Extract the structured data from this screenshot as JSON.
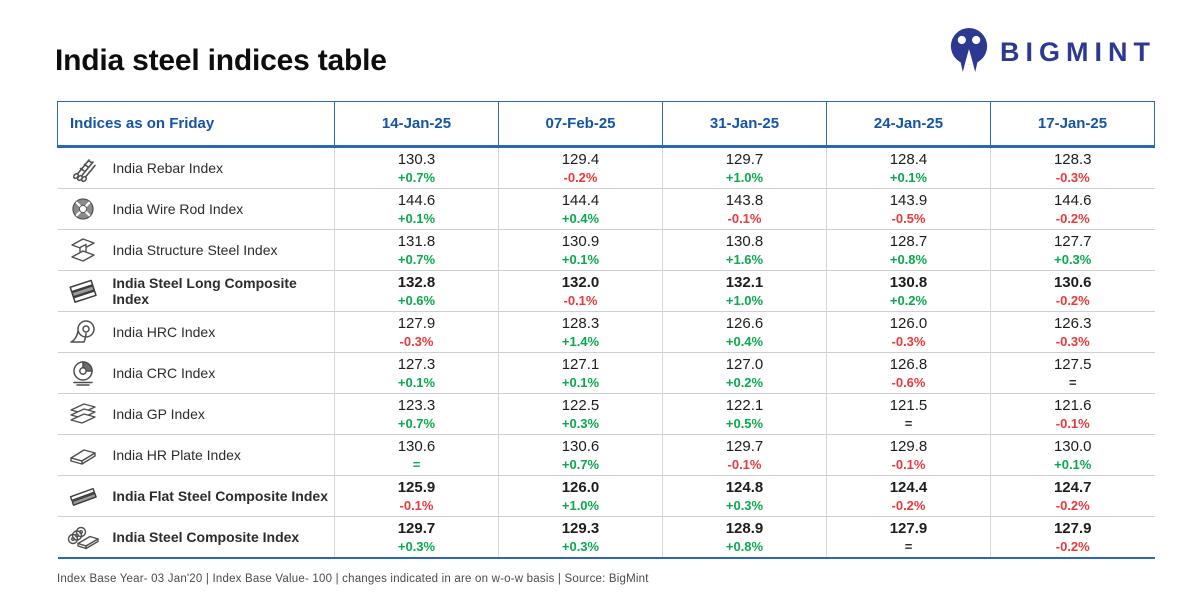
{
  "page": {
    "title": "India steel indices table"
  },
  "logo": {
    "text": "BIGMINT",
    "icon": "bigmint-logo-icon",
    "color": "#2b3990"
  },
  "colors": {
    "header_blue": "#1553a6",
    "border_blue": "#2a68b4",
    "up_green": "#0ba94e",
    "down_red": "#e8393b"
  },
  "table": {
    "header_label": "Indices as on Friday",
    "columns": [
      "14-Jan-25",
      "07-Feb-25",
      "31-Jan-25",
      "24-Jan-25",
      "17-Jan-25"
    ],
    "rows": [
      {
        "label": "India Rebar Index",
        "icon": "rebar-icon",
        "bold": false,
        "cells": [
          {
            "value": "130.3",
            "change": "+0.7%",
            "color": "green"
          },
          {
            "value": "129.4",
            "change": "-0.2%",
            "color": "red"
          },
          {
            "value": "129.7",
            "change": "+1.0%",
            "color": "green"
          },
          {
            "value": "128.4",
            "change": "+0.1%",
            "color": "green"
          },
          {
            "value": "128.3",
            "change": "-0.3%",
            "color": "red"
          }
        ]
      },
      {
        "label": "India Wire Rod Index",
        "icon": "wire-rod-icon",
        "bold": false,
        "cells": [
          {
            "value": "144.6",
            "change": "+0.1%",
            "color": "green"
          },
          {
            "value": "144.4",
            "change": "+0.4%",
            "color": "green"
          },
          {
            "value": "143.8",
            "change": "-0.1%",
            "color": "red"
          },
          {
            "value": "143.9",
            "change": "-0.5%",
            "color": "red"
          },
          {
            "value": "144.6",
            "change": "-0.2%",
            "color": "red"
          }
        ]
      },
      {
        "label": "India Structure Steel Index",
        "icon": "structure-steel-icon",
        "bold": false,
        "cells": [
          {
            "value": "131.8",
            "change": "+0.7%",
            "color": "green"
          },
          {
            "value": "130.9",
            "change": "+0.1%",
            "color": "green"
          },
          {
            "value": "130.8",
            "change": "+1.6%",
            "color": "green"
          },
          {
            "value": "128.7",
            "change": "+0.8%",
            "color": "green"
          },
          {
            "value": "127.7",
            "change": "+0.3%",
            "color": "green"
          }
        ]
      },
      {
        "label": "India Steel Long Composite Index",
        "icon": "long-composite-icon",
        "bold": true,
        "cells": [
          {
            "value": "132.8",
            "change": "+0.6%",
            "color": "green"
          },
          {
            "value": "132.0",
            "change": "-0.1%",
            "color": "red"
          },
          {
            "value": "132.1",
            "change": "+1.0%",
            "color": "green"
          },
          {
            "value": "130.8",
            "change": "+0.2%",
            "color": "green"
          },
          {
            "value": "130.6",
            "change": "-0.2%",
            "color": "red"
          }
        ]
      },
      {
        "label": "India HRC Index",
        "icon": "hrc-coil-icon",
        "bold": false,
        "cells": [
          {
            "value": "127.9",
            "change": "-0.3%",
            "color": "red"
          },
          {
            "value": "128.3",
            "change": "+1.4%",
            "color": "green"
          },
          {
            "value": "126.6",
            "change": "+0.4%",
            "color": "green"
          },
          {
            "value": "126.0",
            "change": "-0.3%",
            "color": "red"
          },
          {
            "value": "126.3",
            "change": "-0.3%",
            "color": "red"
          }
        ]
      },
      {
        "label": "India CRC Index",
        "icon": "crc-coil-icon",
        "bold": false,
        "cells": [
          {
            "value": "127.3",
            "change": "+0.1%",
            "color": "green"
          },
          {
            "value": "127.1",
            "change": "+0.1%",
            "color": "green"
          },
          {
            "value": "127.0",
            "change": "+0.2%",
            "color": "green"
          },
          {
            "value": "126.8",
            "change": "-0.6%",
            "color": "red"
          },
          {
            "value": "127.5",
            "change": "=",
            "color": "dark"
          }
        ]
      },
      {
        "label": "India GP Index",
        "icon": "gp-sheets-icon",
        "bold": false,
        "cells": [
          {
            "value": "123.3",
            "change": "+0.7%",
            "color": "green"
          },
          {
            "value": "122.5",
            "change": "+0.3%",
            "color": "green"
          },
          {
            "value": "122.1",
            "change": "+0.5%",
            "color": "green"
          },
          {
            "value": "121.5",
            "change": "=",
            "color": "dark"
          },
          {
            "value": "121.6",
            "change": "-0.1%",
            "color": "red"
          }
        ]
      },
      {
        "label": "India HR Plate Index",
        "icon": "hr-plate-icon",
        "bold": false,
        "cells": [
          {
            "value": "130.6",
            "change": "=",
            "color": "green"
          },
          {
            "value": "130.6",
            "change": "+0.7%",
            "color": "green"
          },
          {
            "value": "129.7",
            "change": "-0.1%",
            "color": "red"
          },
          {
            "value": "129.8",
            "change": "-0.1%",
            "color": "red"
          },
          {
            "value": "130.0",
            "change": "+0.1%",
            "color": "green"
          }
        ]
      },
      {
        "label": "India Flat Steel Composite Index",
        "icon": "flat-composite-icon",
        "bold": true,
        "cells": [
          {
            "value": "125.9",
            "change": "-0.1%",
            "color": "red"
          },
          {
            "value": "126.0",
            "change": "+1.0%",
            "color": "green"
          },
          {
            "value": "124.8",
            "change": "+0.3%",
            "color": "green"
          },
          {
            "value": "124.4",
            "change": "-0.2%",
            "color": "red"
          },
          {
            "value": "124.7",
            "change": "-0.2%",
            "color": "red"
          }
        ]
      },
      {
        "label": "India Steel Composite Index",
        "icon": "steel-composite-icon",
        "bold": true,
        "cells": [
          {
            "value": "129.7",
            "change": "+0.3%",
            "color": "green"
          },
          {
            "value": "129.3",
            "change": "+0.3%",
            "color": "green"
          },
          {
            "value": "128.9",
            "change": "+0.8%",
            "color": "green"
          },
          {
            "value": "127.9",
            "change": "=",
            "color": "dark"
          },
          {
            "value": "127.9",
            "change": "-0.2%",
            "color": "red"
          }
        ]
      }
    ]
  },
  "footer": {
    "text": "Index Base Year- 03 Jan'20 | Index Base Value- 100 | changes indicated in are on w-o-w basis | Source: BigMint"
  },
  "chart_data": {
    "type": "table",
    "title": "India steel indices table",
    "columns": [
      "Indices as on Friday",
      "14-Jan-25",
      "07-Feb-25",
      "31-Jan-25",
      "24-Jan-25",
      "17-Jan-25"
    ],
    "change_basis": "w-o-w",
    "index_base_year": "03 Jan'20",
    "index_base_value": 100,
    "source": "BigMint",
    "rows": [
      {
        "index": "India Rebar Index",
        "values": [
          130.3,
          129.4,
          129.7,
          128.4,
          128.3
        ],
        "wow_changes": [
          "+0.7%",
          "-0.2%",
          "+1.0%",
          "+0.1%",
          "-0.3%"
        ]
      },
      {
        "index": "India Wire Rod Index",
        "values": [
          144.6,
          144.4,
          143.8,
          143.9,
          144.6
        ],
        "wow_changes": [
          "+0.1%",
          "+0.4%",
          "-0.1%",
          "-0.5%",
          "-0.2%"
        ]
      },
      {
        "index": "India Structure Steel Index",
        "values": [
          131.8,
          130.9,
          130.8,
          128.7,
          127.7
        ],
        "wow_changes": [
          "+0.7%",
          "+0.1%",
          "+1.6%",
          "+0.8%",
          "+0.3%"
        ]
      },
      {
        "index": "India Steel Long Composite Index",
        "values": [
          132.8,
          132.0,
          132.1,
          130.8,
          130.6
        ],
        "wow_changes": [
          "+0.6%",
          "-0.1%",
          "+1.0%",
          "+0.2%",
          "-0.2%"
        ]
      },
      {
        "index": "India HRC Index",
        "values": [
          127.9,
          128.3,
          126.6,
          126.0,
          126.3
        ],
        "wow_changes": [
          "-0.3%",
          "+1.4%",
          "+0.4%",
          "-0.3%",
          "-0.3%"
        ]
      },
      {
        "index": "India CRC Index",
        "values": [
          127.3,
          127.1,
          127.0,
          126.8,
          127.5
        ],
        "wow_changes": [
          "+0.1%",
          "+0.1%",
          "+0.2%",
          "-0.6%",
          "="
        ]
      },
      {
        "index": "India GP Index",
        "values": [
          123.3,
          122.5,
          122.1,
          121.5,
          121.6
        ],
        "wow_changes": [
          "+0.7%",
          "+0.3%",
          "+0.5%",
          "=",
          "-0.1%"
        ]
      },
      {
        "index": "India HR Plate Index",
        "values": [
          130.6,
          130.6,
          129.7,
          129.8,
          130.0
        ],
        "wow_changes": [
          "=",
          "+0.7%",
          "-0.1%",
          "-0.1%",
          "+0.1%"
        ]
      },
      {
        "index": "India Flat Steel Composite Index",
        "values": [
          125.9,
          126.0,
          124.8,
          124.4,
          124.7
        ],
        "wow_changes": [
          "-0.1%",
          "+1.0%",
          "+0.3%",
          "-0.2%",
          "-0.2%"
        ]
      },
      {
        "index": "India Steel Composite Index",
        "values": [
          129.7,
          129.3,
          128.9,
          127.9,
          127.9
        ],
        "wow_changes": [
          "+0.3%",
          "+0.3%",
          "+0.8%",
          "=",
          "-0.2%"
        ]
      }
    ]
  }
}
